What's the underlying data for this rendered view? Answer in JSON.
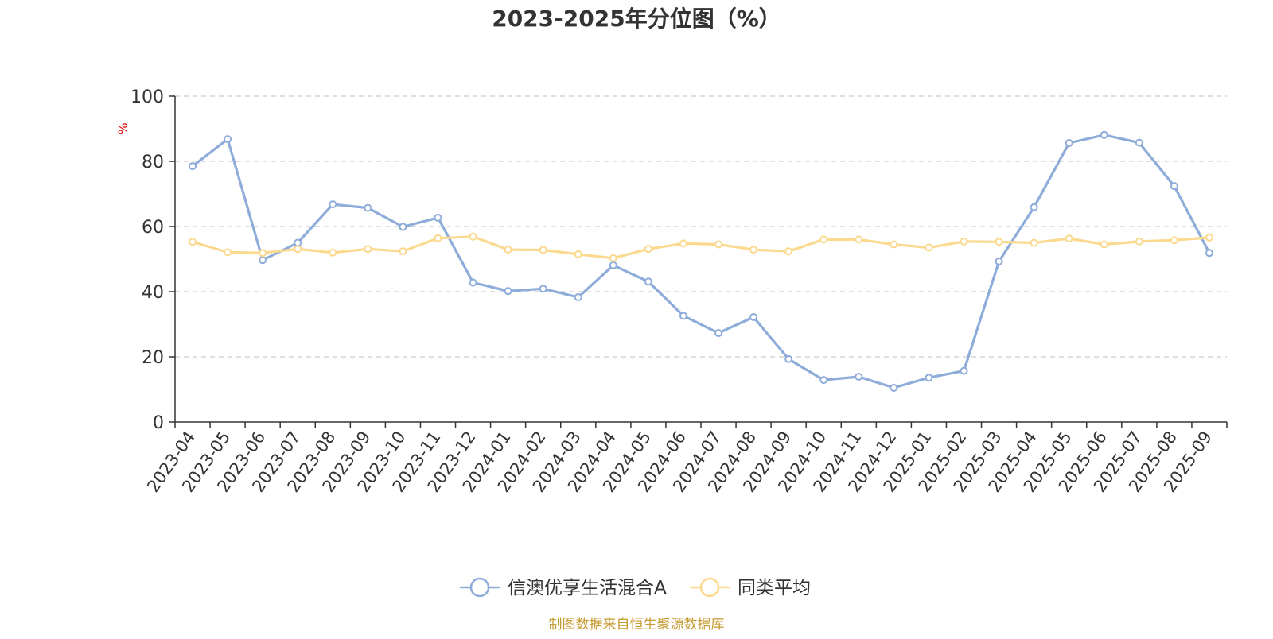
{
  "chart_data": {
    "type": "line",
    "title": "2023-2025年分位图（%）",
    "xlabel": "",
    "ylabel": "%",
    "ylim": [
      0,
      100
    ],
    "yticks": [
      0,
      20,
      40,
      60,
      80,
      100
    ],
    "grid": true,
    "legend_position": "bottom-center",
    "categories": [
      "2023-04",
      "2023-05",
      "2023-06",
      "2023-07",
      "2023-08",
      "2023-09",
      "2023-10",
      "2023-11",
      "2023-12",
      "2024-01",
      "2024-02",
      "2024-03",
      "2024-04",
      "2024-05",
      "2024-06",
      "2024-07",
      "2024-08",
      "2024-09",
      "2024-10",
      "2024-11",
      "2024-12",
      "2025-01",
      "2025-02",
      "2025-03",
      "2025-04",
      "2025-05",
      "2025-06",
      "2025-07",
      "2025-08",
      "2025-09"
    ],
    "series": [
      {
        "name": "信澳优享生活混合A",
        "color": "#8eacd9",
        "values": [
          78.5,
          86.8,
          49.7,
          55.0,
          66.8,
          65.7,
          59.9,
          62.7,
          42.8,
          40.2,
          40.9,
          38.3,
          48.1,
          43.1,
          32.6,
          27.3,
          32.2,
          19.3,
          12.9,
          13.9,
          10.5,
          13.6,
          15.7,
          49.3,
          65.9,
          85.6,
          88.1,
          85.7,
          72.4,
          51.9
        ]
      },
      {
        "name": "同类平均",
        "color": "#fbd98e",
        "values": [
          55.3,
          52.1,
          51.9,
          53.1,
          52.0,
          53.1,
          52.4,
          56.4,
          56.9,
          52.9,
          52.8,
          51.5,
          50.3,
          53.1,
          54.8,
          54.5,
          52.9,
          52.4,
          56.0,
          56.0,
          54.5,
          53.5,
          55.4,
          55.3,
          55.0,
          56.3,
          54.5,
          55.4,
          55.8,
          56.6
        ]
      }
    ]
  },
  "footer": {
    "source": "制图数据来自恒生聚源数据库"
  },
  "colors": {
    "axis": "#333333",
    "grid": "#cccccc",
    "ylabel": "#e00000",
    "footer": "#c59a2f",
    "title": "#333333"
  }
}
